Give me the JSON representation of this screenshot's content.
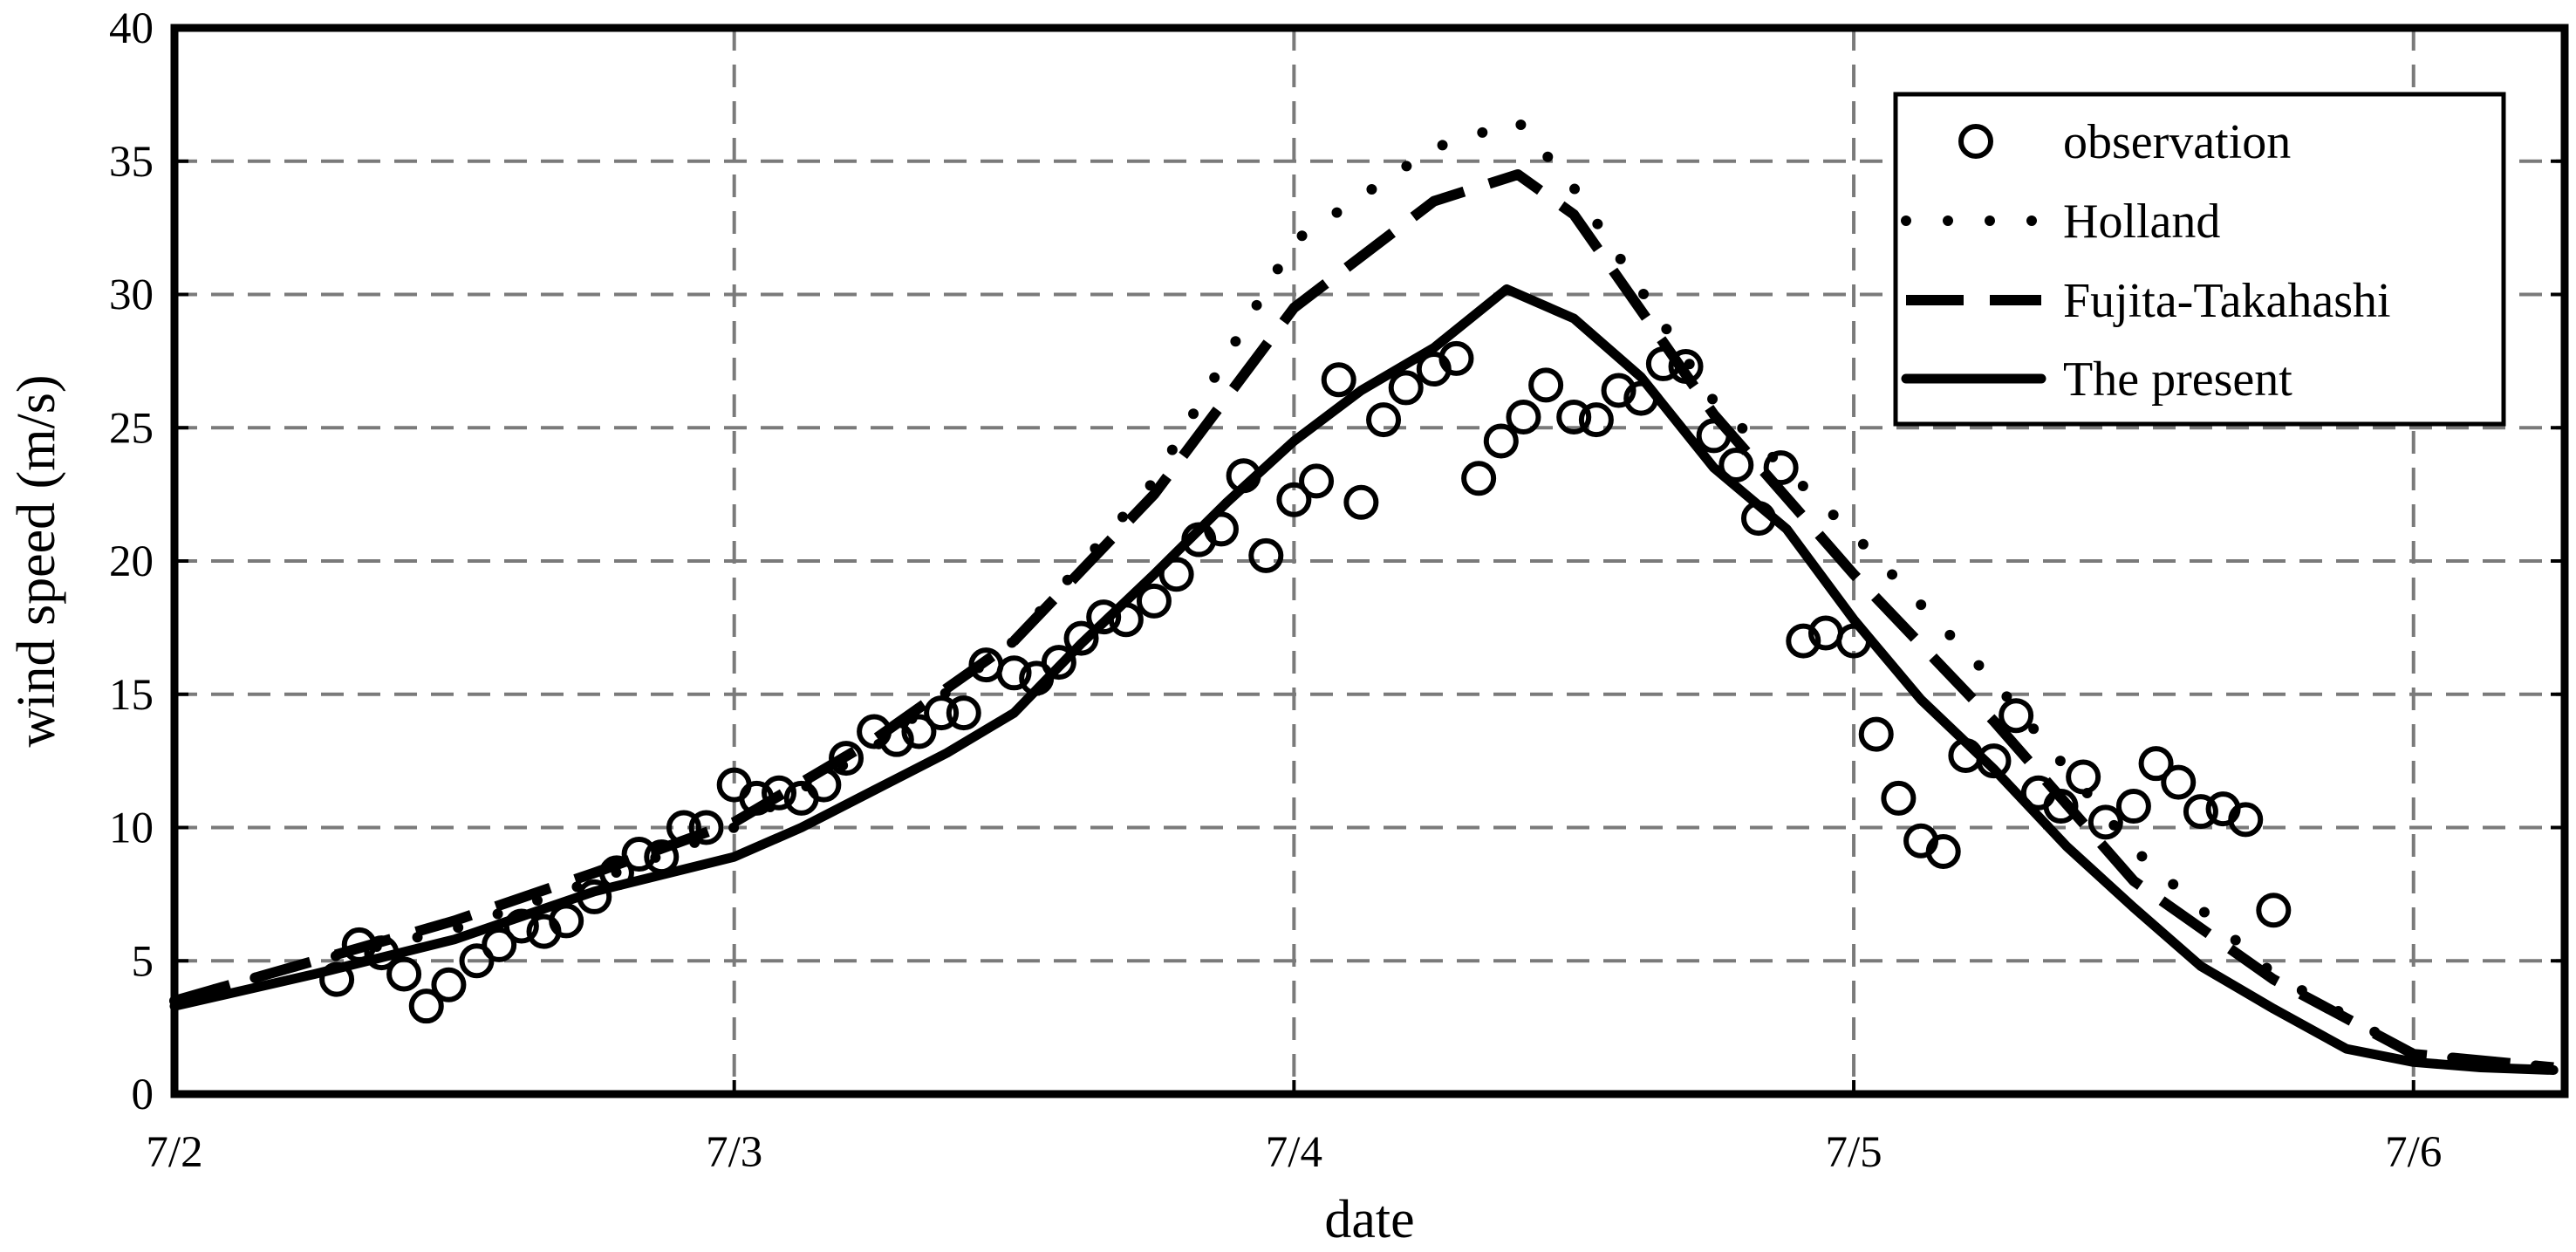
{
  "chart_data": {
    "type": "line",
    "xlabel": "date",
    "ylabel": "wind speed (m/s)",
    "x_ticks": [
      "7/2",
      "7/3",
      "7/4",
      "7/5",
      "7/6"
    ],
    "x_unit": "days",
    "xlim": [
      0,
      4.27
    ],
    "ylim": [
      0,
      40
    ],
    "y_ticks": [
      0,
      5,
      10,
      15,
      20,
      25,
      30,
      35,
      40
    ],
    "grid": true,
    "legend_position": "top-right",
    "series": [
      {
        "name": "observation",
        "style": "circles",
        "x": [
          0.29,
          0.33,
          0.37,
          0.41,
          0.45,
          0.49,
          0.54,
          0.58,
          0.62,
          0.66,
          0.7,
          0.75,
          0.79,
          0.83,
          0.87,
          0.91,
          0.95,
          1.0,
          1.04,
          1.08,
          1.12,
          1.16,
          1.2,
          1.25,
          1.29,
          1.33,
          1.37,
          1.41,
          1.45,
          1.5,
          1.54,
          1.58,
          1.62,
          1.66,
          1.7,
          1.75,
          1.79,
          1.83,
          1.87,
          1.91,
          1.95,
          2.0,
          2.04,
          2.08,
          2.12,
          2.16,
          2.2,
          2.25,
          2.29,
          2.33,
          2.37,
          2.41,
          2.45,
          2.5,
          2.54,
          2.58,
          2.62,
          2.66,
          2.7,
          2.75,
          2.79,
          2.83,
          2.87,
          2.91,
          2.95,
          3.0,
          3.04,
          3.08,
          3.12,
          3.16,
          3.2,
          3.25,
          3.29,
          3.33,
          3.37,
          3.41,
          3.45,
          3.5,
          3.54,
          3.58,
          3.62,
          3.66,
          3.7,
          3.75
        ],
        "y": [
          4.3,
          5.6,
          5.3,
          4.5,
          3.3,
          4.1,
          5.0,
          5.6,
          6.3,
          6.1,
          6.5,
          7.4,
          8.3,
          9.0,
          8.9,
          10.0,
          10.0,
          11.6,
          11.1,
          11.3,
          11.1,
          11.6,
          12.6,
          13.6,
          13.3,
          13.6,
          14.3,
          14.3,
          16.1,
          15.8,
          15.6,
          16.2,
          17.1,
          17.9,
          17.8,
          18.5,
          19.5,
          20.8,
          21.2,
          23.2,
          20.2,
          22.3,
          23.0,
          26.8,
          22.2,
          25.3,
          26.5,
          27.2,
          27.6,
          23.1,
          24.5,
          25.4,
          26.6,
          25.4,
          25.3,
          26.4,
          26.1,
          27.4,
          27.3,
          24.7,
          23.6,
          21.6,
          23.5,
          17.0,
          17.3,
          17.0,
          13.5,
          11.1,
          9.5,
          9.1,
          12.7,
          12.5,
          14.2,
          11.3,
          10.8,
          11.9,
          10.2,
          10.8,
          12.4,
          11.7,
          10.6,
          10.7,
          10.3,
          6.9
        ]
      },
      {
        "name": "Holland",
        "style": "dotted",
        "x": [
          0.0,
          0.25,
          0.5,
          0.75,
          1.0,
          1.25,
          1.5,
          1.75,
          2.0,
          2.25,
          2.4,
          2.5,
          2.75,
          3.0,
          3.25,
          3.5,
          3.75,
          4.0,
          4.25
        ],
        "y": [
          3.5,
          5.0,
          6.2,
          8.0,
          10.0,
          13.0,
          17.0,
          23.0,
          32.0,
          35.5,
          36.5,
          34.0,
          26.0,
          21.0,
          15.5,
          9.2,
          4.5,
          1.5,
          1.0
        ]
      },
      {
        "name": "Fujita-Takahashi",
        "style": "dashed",
        "x": [
          0.0,
          0.25,
          0.5,
          0.75,
          1.0,
          1.25,
          1.5,
          1.75,
          2.0,
          2.25,
          2.4,
          2.5,
          2.75,
          3.0,
          3.25,
          3.5,
          3.75,
          4.0,
          4.25
        ],
        "y": [
          3.5,
          5.0,
          6.5,
          8.3,
          10.2,
          13.3,
          17.0,
          22.5,
          29.5,
          33.5,
          34.5,
          33.0,
          25.5,
          19.5,
          14.0,
          8.0,
          4.3,
          1.5,
          1.0
        ]
      },
      {
        "name": "The present",
        "style": "solid",
        "x": [
          0.0,
          0.25,
          0.5,
          0.75,
          1.0,
          1.12,
          1.25,
          1.38,
          1.5,
          1.62,
          1.75,
          1.88,
          2.0,
          2.12,
          2.25,
          2.38,
          2.5,
          2.62,
          2.75,
          2.88,
          3.0,
          3.12,
          3.25,
          3.38,
          3.5,
          3.62,
          3.75,
          3.88,
          4.0,
          4.12,
          4.25
        ],
        "y": [
          3.3,
          4.5,
          5.8,
          7.6,
          8.9,
          10.0,
          11.4,
          12.8,
          14.3,
          16.9,
          19.5,
          22.2,
          24.5,
          26.4,
          28.0,
          30.2,
          29.1,
          26.9,
          23.5,
          21.2,
          17.8,
          14.8,
          12.2,
          9.3,
          7.0,
          4.8,
          3.2,
          1.7,
          1.2,
          1.0,
          0.9
        ]
      }
    ]
  }
}
